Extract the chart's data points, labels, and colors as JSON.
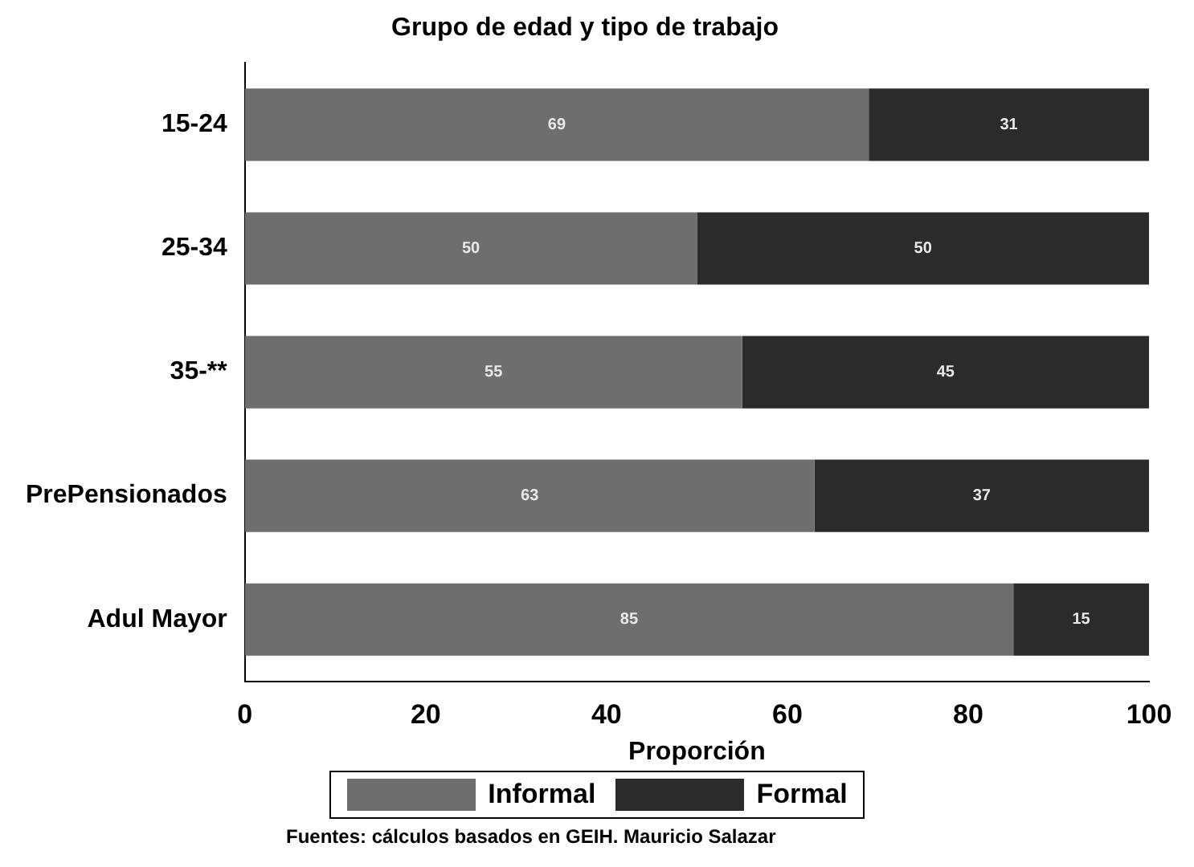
{
  "chart_data": {
    "type": "bar",
    "orientation": "horizontal",
    "stacked": true,
    "title": "Grupo de edad y tipo de trabajo",
    "xlabel": "Proporción",
    "categories": [
      "15-24",
      "25-34",
      "35-**",
      "PrePensionados",
      "Adul Mayor"
    ],
    "series": [
      {
        "name": "Informal",
        "color": "#6e6e6e",
        "values": [
          69,
          50,
          55,
          63,
          85
        ]
      },
      {
        "name": "Formal",
        "color": "#2b2b2b",
        "values": [
          31,
          50,
          45,
          37,
          15
        ]
      }
    ],
    "xlim": [
      0,
      100
    ],
    "xticks": [
      0,
      20,
      40,
      60,
      80,
      100
    ],
    "data_labels": true,
    "legend": "bottom",
    "grid": false,
    "annotations": [
      "Fuentes: cálculos basados en GEIH. Mauricio Salazar"
    ]
  }
}
